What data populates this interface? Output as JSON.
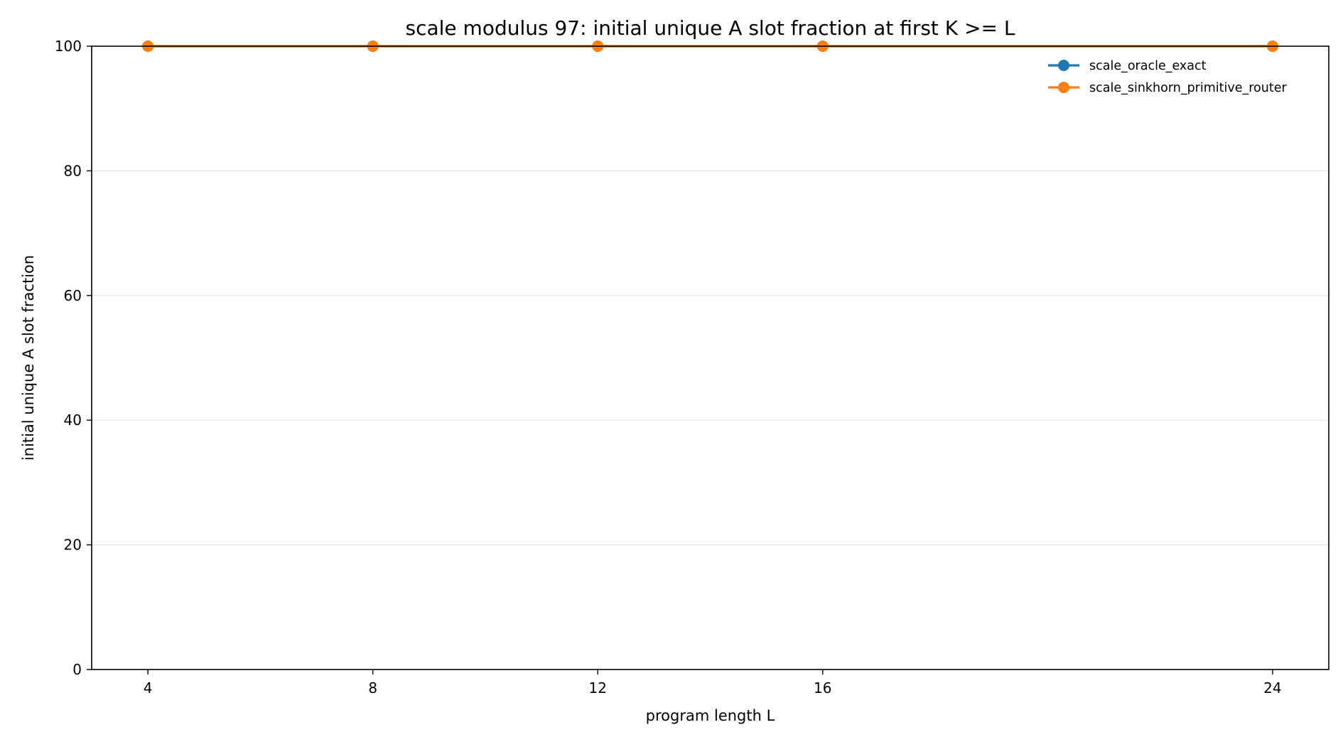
{
  "chart_data": {
    "type": "line",
    "title": "scale modulus 97: initial unique A slot fraction at first K >= L",
    "xlabel": "program length L",
    "ylabel": "initial unique A slot fraction",
    "x": [
      4,
      8,
      12,
      16,
      24
    ],
    "xticks": [
      4,
      8,
      12,
      16,
      24
    ],
    "yticks": [
      0,
      20,
      40,
      60,
      80,
      100
    ],
    "xlim": [
      3,
      25
    ],
    "ylim": [
      0,
      100
    ],
    "grid": "horizontal",
    "legend_position": "top-right",
    "series": [
      {
        "name": "scale_oracle_exact",
        "color": "#1f77b4",
        "values": [
          100,
          100,
          100,
          100,
          100
        ]
      },
      {
        "name": "scale_sinkhorn_primitive_router",
        "color": "#ff7f0e",
        "values": [
          100,
          100,
          100,
          100,
          100
        ]
      }
    ]
  }
}
